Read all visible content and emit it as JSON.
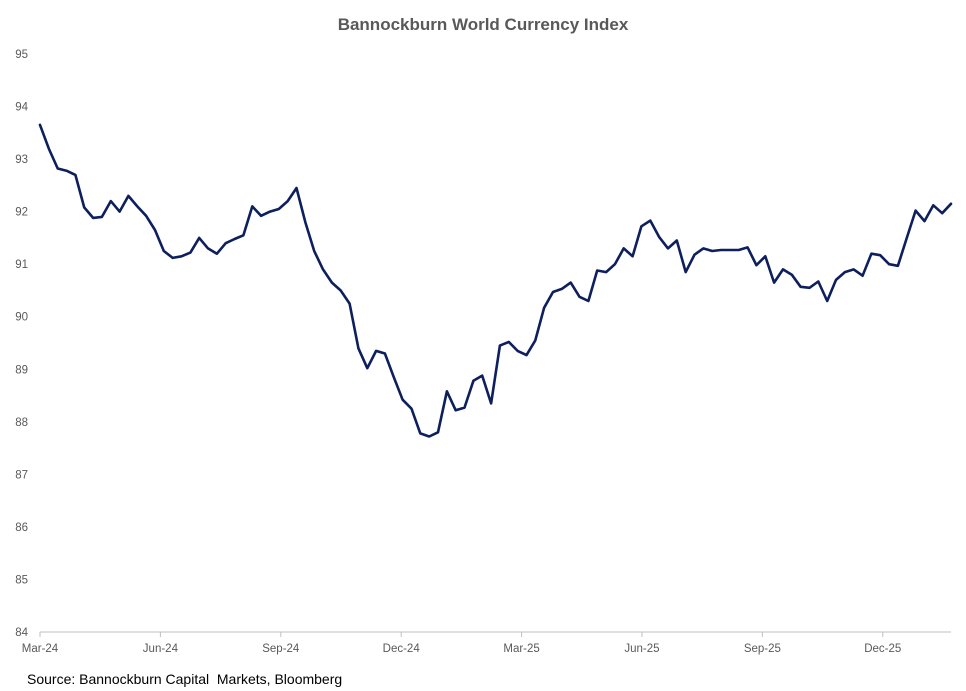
{
  "chart_data": {
    "type": "line",
    "title": "Bannockburn World Currency Index",
    "xlabel": "",
    "ylabel": "",
    "ylim": [
      84,
      95
    ],
    "y_ticks": [
      84,
      85,
      86,
      87,
      88,
      89,
      90,
      91,
      92,
      93,
      94,
      95
    ],
    "x_tick_labels": [
      "Mar-24",
      "Jun-24",
      "Sep-24",
      "Dec-24",
      "Mar-25",
      "Jun-25",
      "Sep-25",
      "Dec-25"
    ],
    "grid": false,
    "legend": "none",
    "line_color": "#0d1f5c",
    "series": [
      {
        "values": [
          93.65,
          93.2,
          92.82,
          92.78,
          92.7,
          92.08,
          91.88,
          91.9,
          92.2,
          92.0,
          92.3,
          92.1,
          91.92,
          91.65,
          91.25,
          91.12,
          91.15,
          91.22,
          91.5,
          91.3,
          91.2,
          91.4,
          91.48,
          91.55,
          92.1,
          91.92,
          92.0,
          92.05,
          92.2,
          92.45,
          91.8,
          91.25,
          90.9,
          90.65,
          90.5,
          90.25,
          89.4,
          89.02,
          89.35,
          89.3,
          88.85,
          88.42,
          88.25,
          87.78,
          87.72,
          87.8,
          88.58,
          88.22,
          88.27,
          88.78,
          88.88,
          88.35,
          89.45,
          89.52,
          89.35,
          89.27,
          89.55,
          90.17,
          90.47,
          90.53,
          90.65,
          90.38,
          90.3,
          90.88,
          90.85,
          91.0,
          91.3,
          91.15,
          91.72,
          91.83,
          91.52,
          91.3,
          91.45,
          90.85,
          91.18,
          91.3,
          91.25,
          91.27,
          91.27,
          91.27,
          91.32,
          90.98,
          91.15,
          90.65,
          90.9,
          90.8,
          90.57,
          90.55,
          90.67,
          90.3,
          90.7,
          90.85,
          90.9,
          90.78,
          91.2,
          91.17,
          91.0,
          90.97,
          91.5,
          92.02,
          91.82,
          92.12,
          91.97,
          92.15
        ]
      }
    ]
  },
  "footer": {
    "source": "Source: Bannockburn Capital  Markets, Bloomberg"
  }
}
